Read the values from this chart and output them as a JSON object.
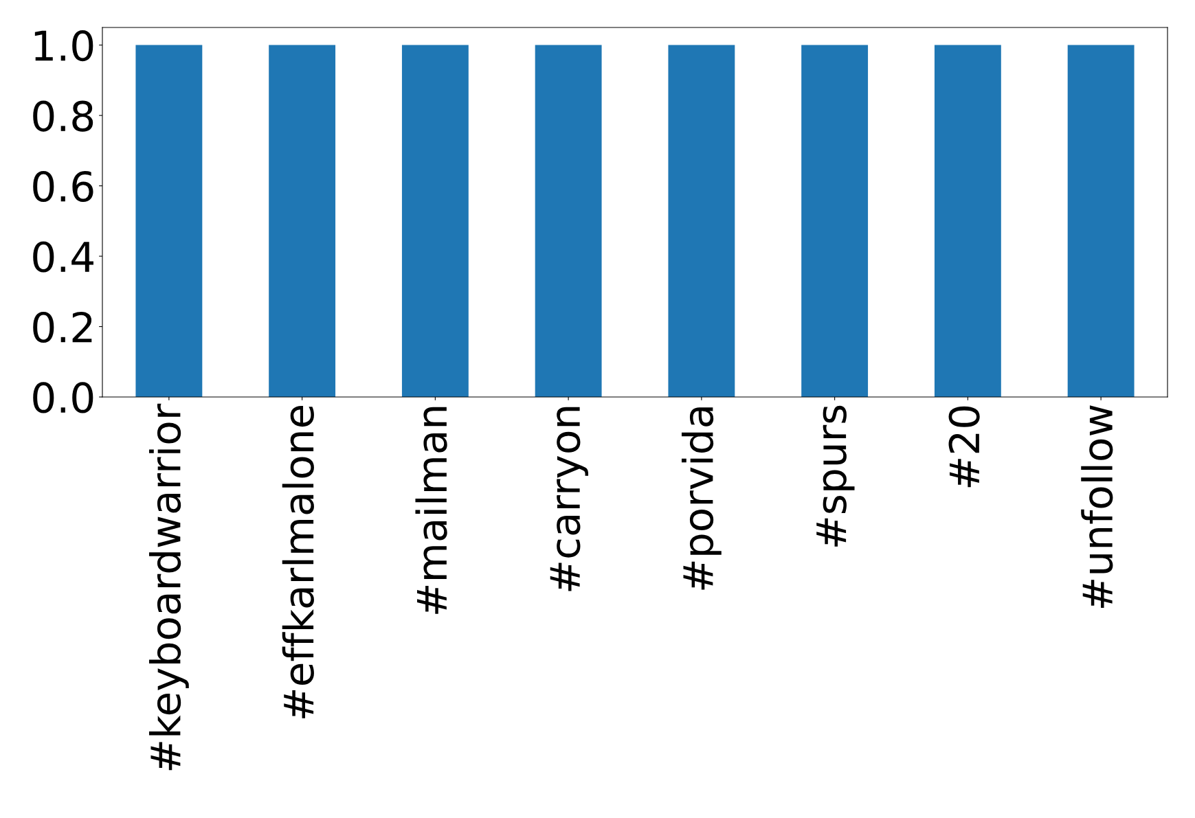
{
  "chart_data": {
    "type": "bar",
    "categories": [
      "#keyboardwarrior",
      "#effkarlmalone",
      "#mailman",
      "#carryon",
      "#porvida",
      "#spurs",
      "#20",
      "#unfollow"
    ],
    "values": [
      1,
      1,
      1,
      1,
      1,
      1,
      1,
      1
    ],
    "color": "#1f77b4",
    "ylim": [
      0,
      1.05
    ],
    "yticks": [
      {
        "value": 0,
        "label": "0.0"
      },
      {
        "value": 0.2,
        "label": "0.2"
      },
      {
        "value": 0.4,
        "label": "0.4"
      },
      {
        "value": 0.6,
        "label": "0.6"
      },
      {
        "value": 0.8,
        "label": "0.8"
      },
      {
        "value": 1.0,
        "label": "1.0"
      }
    ],
    "grid": false,
    "legend": false
  }
}
